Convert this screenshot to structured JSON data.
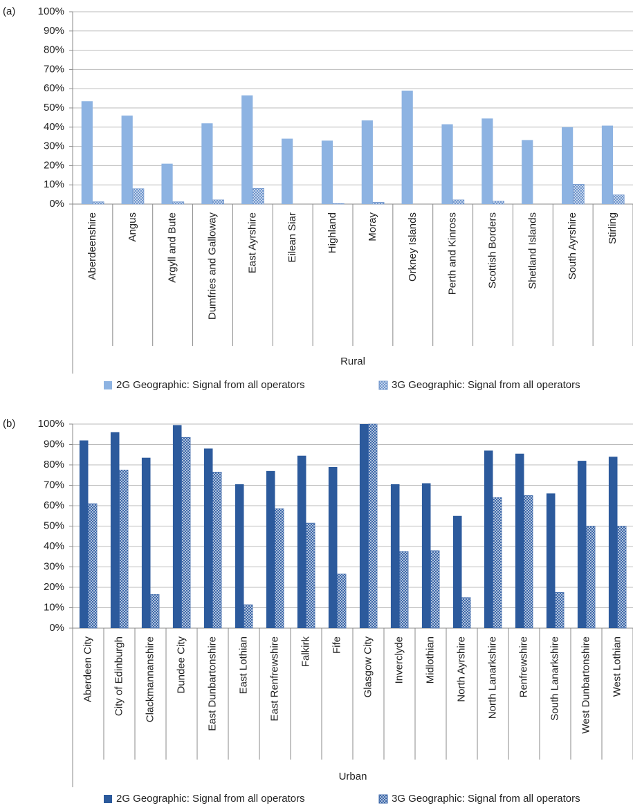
{
  "chart_data": [
    {
      "type": "bar",
      "label": "(a)",
      "x_label": "Rural",
      "categories": [
        "Aberdeenshire",
        "Angus",
        "Argyll and Bute",
        "Dumfries and Galloway",
        "East Ayrshire",
        "Eilean Siar",
        "Highland",
        "Moray",
        "Orkney Islands",
        "Perth and Kinross",
        "Scottish Borders",
        "Shetland Islands",
        "South Ayrshire",
        "Stirling"
      ],
      "series": [
        {
          "name": "2G Geographic: Signal from all operators",
          "color": "#8db3e2",
          "hatched": false,
          "values": [
            53.5,
            46,
            21,
            42,
            56.5,
            34,
            33,
            43.5,
            59,
            41.5,
            44.5,
            33.3,
            40,
            40.8
          ]
        },
        {
          "name": "3G Geographic: Signal from all operators",
          "color": "#6f95cc",
          "hatched": true,
          "values": [
            1.2,
            8,
            1.2,
            2.2,
            8.2,
            0,
            0.3,
            1,
            0,
            2.2,
            1.5,
            0,
            10.3,
            4.8
          ]
        }
      ],
      "ylim": [
        0,
        100
      ],
      "yticks": [
        {
          "value": 0,
          "label": "0%"
        },
        {
          "value": 10,
          "label": "10%"
        },
        {
          "value": 20,
          "label": "20%"
        },
        {
          "value": 30,
          "label": "30%"
        },
        {
          "value": 40,
          "label": "40%"
        },
        {
          "value": 50,
          "label": "50%"
        },
        {
          "value": 60,
          "label": "60%"
        },
        {
          "value": 70,
          "label": "70%"
        },
        {
          "value": 80,
          "label": "80%"
        },
        {
          "value": 90,
          "label": "90%"
        },
        {
          "value": 100,
          "label": "100%"
        }
      ],
      "grid": true,
      "legend": "bottom"
    },
    {
      "type": "bar",
      "label": "(b)",
      "x_label": "Urban",
      "categories": [
        "Aberdeen City",
        "City of Edinburgh",
        "Clackmannanshire",
        "Dundee City",
        "East Dunbartonshire",
        "East Lothian",
        "East Renfrewshire",
        "Falkirk",
        "Fife",
        "Glasgow City",
        "Inverclyde",
        "Midlothian",
        "North Ayrshire",
        "North Lanarkshire",
        "Renfrewshire",
        "South Lanarkshire",
        "West Dunbartonshire",
        "West Lothian"
      ],
      "series": [
        {
          "name": "2G Geographic: Signal from all operators",
          "color": "#2c5a9c",
          "hatched": false,
          "values": [
            92,
            96,
            83.5,
            99.5,
            88,
            70.5,
            77,
            84.5,
            79,
            100,
            70.5,
            71,
            55,
            87,
            85.5,
            66,
            82,
            84
          ]
        },
        {
          "name": "3G Geographic: Signal from all operators",
          "color": "#3a66a8",
          "hatched": true,
          "values": [
            61,
            77.5,
            16.5,
            93.5,
            76.5,
            11.5,
            58.5,
            51.5,
            26.5,
            100,
            37.5,
            38,
            15,
            64,
            65,
            17.5,
            50,
            50
          ]
        }
      ],
      "ylim": [
        0,
        100
      ],
      "yticks": [
        {
          "value": 0,
          "label": "0%"
        },
        {
          "value": 10,
          "label": "10%"
        },
        {
          "value": 20,
          "label": "20%"
        },
        {
          "value": 30,
          "label": "30%"
        },
        {
          "value": 40,
          "label": "40%"
        },
        {
          "value": 50,
          "label": "50%"
        },
        {
          "value": 60,
          "label": "60%"
        },
        {
          "value": 70,
          "label": "70%"
        },
        {
          "value": 80,
          "label": "80%"
        },
        {
          "value": 90,
          "label": "90%"
        },
        {
          "value": 100,
          "label": "100%"
        }
      ],
      "grid": true,
      "legend": "bottom"
    }
  ]
}
